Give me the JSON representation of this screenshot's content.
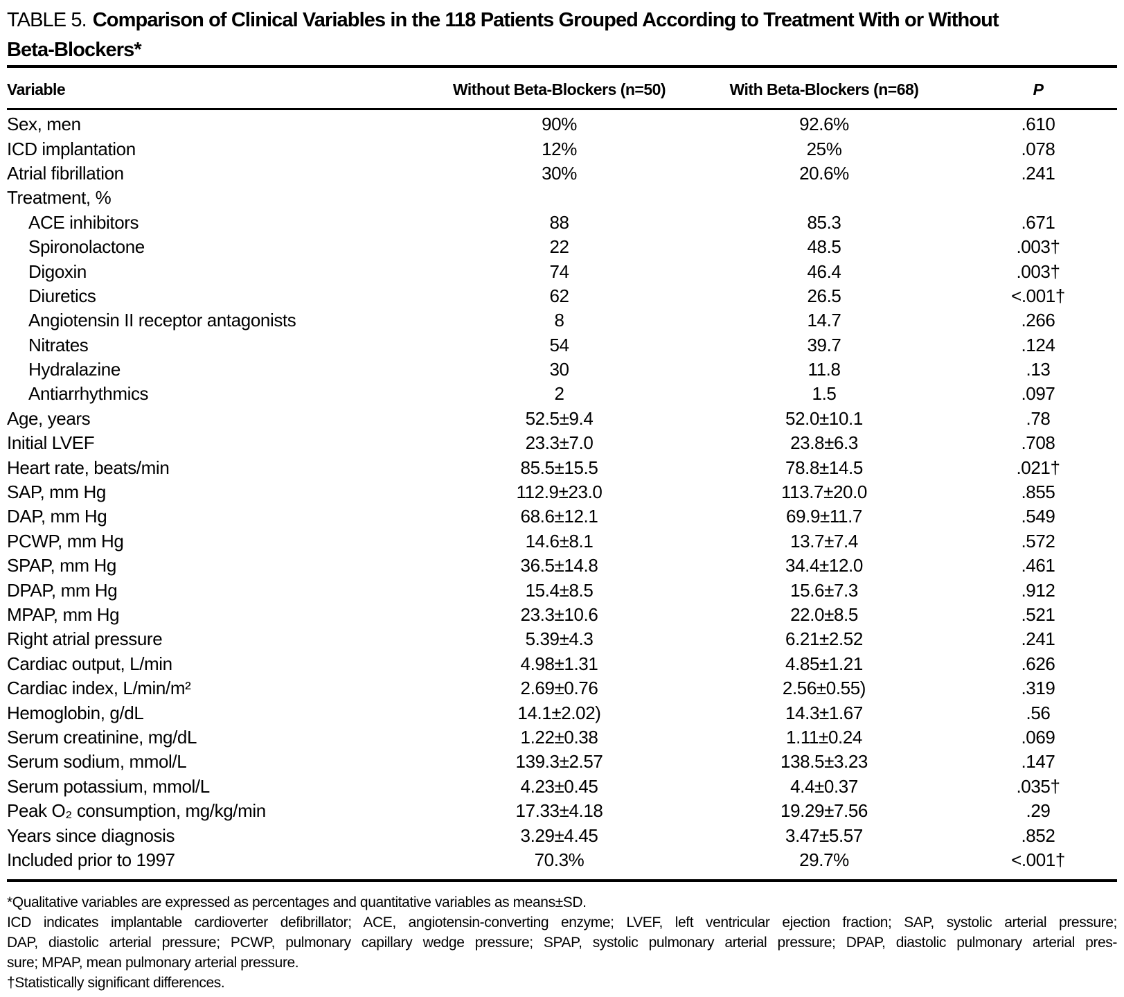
{
  "title": {
    "prefix": "TABLE 5.",
    "line1": "Comparison of Clinical Variables in the 118 Patients Grouped According to Treatment With or Without",
    "line2": "Beta-Blockers*"
  },
  "header": {
    "variable": "Variable",
    "without": "Without Beta-Blockers (n=50)",
    "with": "With Beta-Blockers (n=68)",
    "p": "P"
  },
  "rows": [
    {
      "label": "Sex, men",
      "indent": false,
      "c1": "90%",
      "c2": "92.6%",
      "p": ".610"
    },
    {
      "label": "ICD implantation",
      "indent": false,
      "c1": "12%",
      "c2": "25%",
      "p": ".078"
    },
    {
      "label": "Atrial fibrillation",
      "indent": false,
      "c1": "30%",
      "c2": "20.6%",
      "p": ".241"
    },
    {
      "label": "Treatment, %",
      "indent": false,
      "c1": "",
      "c2": "",
      "p": ""
    },
    {
      "label": "ACE inhibitors",
      "indent": true,
      "c1": "88",
      "c2": "85.3",
      "p": ".671"
    },
    {
      "label": "Spironolactone",
      "indent": true,
      "c1": "22",
      "c2": "48.5",
      "p": ".003†"
    },
    {
      "label": "Digoxin",
      "indent": true,
      "c1": "74",
      "c2": "46.4",
      "p": ".003†"
    },
    {
      "label": "Diuretics",
      "indent": true,
      "c1": "62",
      "c2": "26.5",
      "p": "<.001†"
    },
    {
      "label": "Angiotensin II receptor antagonists",
      "indent": true,
      "c1": "8",
      "c2": "14.7",
      "p": ".266"
    },
    {
      "label": "Nitrates",
      "indent": true,
      "c1": "54",
      "c2": "39.7",
      "p": ".124"
    },
    {
      "label": "Hydralazine",
      "indent": true,
      "c1": "30",
      "c2": "11.8",
      "p": ".13"
    },
    {
      "label": "Antiarrhythmics",
      "indent": true,
      "c1": "2",
      "c2": "1.5",
      "p": ".097"
    },
    {
      "label": "Age, years",
      "indent": false,
      "c1": "52.5±9.4",
      "c2": "52.0±10.1",
      "p": ".78"
    },
    {
      "label": "Initial LVEF",
      "indent": false,
      "c1": "23.3±7.0",
      "c2": "23.8±6.3",
      "p": ".708"
    },
    {
      "label": "Heart rate, beats/min",
      "indent": false,
      "c1": "85.5±15.5",
      "c2": "78.8±14.5",
      "p": ".021†"
    },
    {
      "label": "SAP, mm Hg",
      "indent": false,
      "c1": "112.9±23.0",
      "c2": "113.7±20.0",
      "p": ".855"
    },
    {
      "label": "DAP, mm Hg",
      "indent": false,
      "c1": "68.6±12.1",
      "c2": "69.9±11.7",
      "p": ".549"
    },
    {
      "label": "PCWP, mm Hg",
      "indent": false,
      "c1": "14.6±8.1",
      "c2": "13.7±7.4",
      "p": ".572"
    },
    {
      "label": "SPAP, mm Hg",
      "indent": false,
      "c1": "36.5±14.8",
      "c2": "34.4±12.0",
      "p": ".461"
    },
    {
      "label": "DPAP, mm Hg",
      "indent": false,
      "c1": "15.4±8.5",
      "c2": "15.6±7.3",
      "p": ".912"
    },
    {
      "label": "MPAP, mm Hg",
      "indent": false,
      "c1": "23.3±10.6",
      "c2": "22.0±8.5",
      "p": ".521"
    },
    {
      "label": "Right atrial pressure",
      "indent": false,
      "c1": "5.39±4.3",
      "c2": "6.21±2.52",
      "p": ".241"
    },
    {
      "label": "Cardiac output, L/min",
      "indent": false,
      "c1": "4.98±1.31",
      "c2": "4.85±1.21",
      "p": ".626"
    },
    {
      "label": "Cardiac index, L/min/m²",
      "indent": false,
      "c1": "2.69±0.76",
      "c2": "2.56±0.55)",
      "p": ".319"
    },
    {
      "label": "Hemoglobin, g/dL",
      "indent": false,
      "c1": "14.1±2.02)",
      "c2": "14.3±1.67",
      "p": ".56"
    },
    {
      "label": "Serum creatinine, mg/dL",
      "indent": false,
      "c1": "1.22±0.38",
      "c2": "1.11±0.24",
      "p": ".069"
    },
    {
      "label": "Serum sodium, mmol/L",
      "indent": false,
      "c1": "139.3±2.57",
      "c2": "138.5±3.23",
      "p": ".147"
    },
    {
      "label": "Serum potassium, mmol/L",
      "indent": false,
      "c1": "4.23±0.45",
      "c2": "4.4±0.37",
      "p": ".035†"
    },
    {
      "label": "Peak O₂ consumption, mg/kg/min",
      "indent": false,
      "c1": "17.33±4.18",
      "c2": "19.29±7.56",
      "p": ".29"
    },
    {
      "label": "Years since diagnosis",
      "indent": false,
      "c1": "3.29±4.45",
      "c2": "3.47±5.57",
      "p": ".852"
    },
    {
      "label": "Included prior to 1997",
      "indent": false,
      "c1": "70.3%",
      "c2": "29.7%",
      "p": "<.001†"
    }
  ],
  "footnotes": {
    "qualitative": "*Qualitative variables are expressed as percentages and quantitative variables as means±SD.",
    "abbrev_line1": "ICD indicates implantable cardioverter defibrillator; ACE, angiotensin-converting enzyme; LVEF, left ventricular ejection fraction; SAP, systolic arterial pressure;",
    "abbrev_line2": "DAP, diastolic arterial pressure; PCWP, pulmonary capillary wedge pressure; SPAP, systolic pulmonary arterial pressure; DPAP, diastolic pulmonary arterial pres-",
    "abbrev_line3": "sure; MPAP, mean pulmonary arterial pressure.",
    "significance": "†Statistically significant differences."
  }
}
